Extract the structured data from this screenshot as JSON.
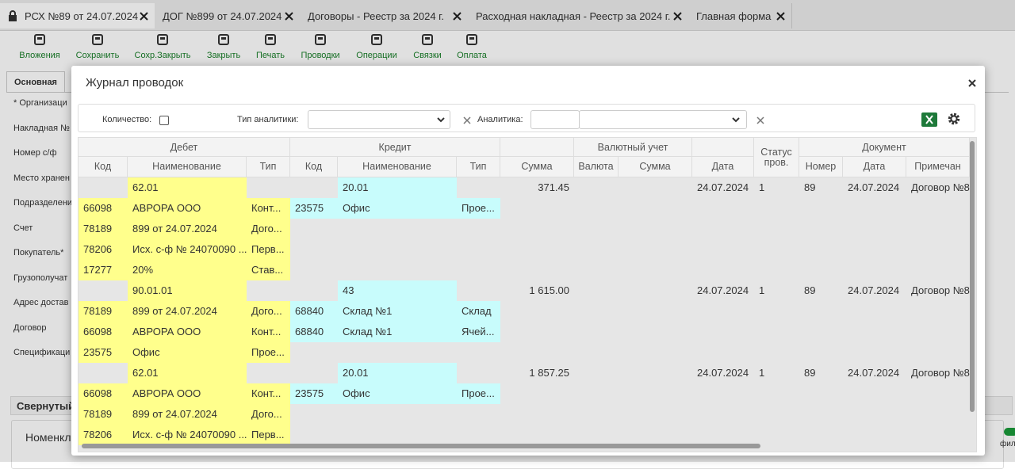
{
  "tabs": [
    "РСХ №89 от 24.07.2024",
    "ДОГ №899 от 24.07.2024",
    "Договоры - Реестр за 2024 г.",
    "Расходная накладная - Реестр за 2024 г.",
    "Главная форма"
  ],
  "toolbar": [
    "Вложения",
    "Сохранить",
    "Сохр.Закрыть",
    "Закрыть",
    "Печать",
    "Проводки",
    "Операции",
    "Связки",
    "Оплата"
  ],
  "form": {
    "tab": "Основная",
    "fields": [
      "* Организаци",
      "Накладная №",
      "Номер с/ф",
      "Место хранен",
      "Подразделени",
      "Счет",
      "Покупатель*",
      "Грузополучат",
      "Адрес достав",
      "Договор",
      "Спецификаци"
    ],
    "section": "Свернутый",
    "subsection": "Номенкл",
    "right_label": "фил"
  },
  "dialog": {
    "title": "Журнал проводок",
    "filters": {
      "quantity": "Количество:",
      "analytics_type": "Тип аналитики:",
      "analytics": "Аналитика:"
    },
    "table": {
      "groups": [
        "Дебет",
        "Кредит",
        "Валютный учет",
        "Документ"
      ],
      "columns": [
        "Код",
        "Наименование",
        "Тип",
        "Код",
        "Наименование",
        "Тип",
        "Сумма",
        "Валюта",
        "Сумма",
        "Дата",
        "Статус пров.",
        "Номер",
        "Дата",
        "Примечан"
      ],
      "rows": [
        [
          null,
          "62.01",
          null,
          null,
          "20.01",
          null,
          "371.45",
          null,
          null,
          "24.07.2024",
          "1",
          "89",
          "24.07.2024",
          "Договор №8"
        ],
        [
          "66098",
          "АВРОРА ООО",
          "Конт...",
          "23575",
          "Офис",
          "Прое...",
          null,
          null,
          null,
          null,
          null,
          null,
          null,
          null
        ],
        [
          "78189",
          "899 от 24.07.2024",
          "Дого...",
          null,
          null,
          null,
          null,
          null,
          null,
          null,
          null,
          null,
          null,
          null
        ],
        [
          "78206",
          "Исх. с-ф № 24070090 ...",
          "Перв...",
          null,
          null,
          null,
          null,
          null,
          null,
          null,
          null,
          null,
          null,
          null
        ],
        [
          "17277",
          "20%",
          "Став...",
          null,
          null,
          null,
          null,
          null,
          null,
          null,
          null,
          null,
          null,
          null
        ],
        [
          null,
          "90.01.01",
          null,
          null,
          "43",
          null,
          "1 615.00",
          null,
          null,
          "24.07.2024",
          "1",
          "89",
          "24.07.2024",
          "Договор №8"
        ],
        [
          "78189",
          "899 от 24.07.2024",
          "Дого...",
          "68840",
          "Склад №1",
          "Склад",
          null,
          null,
          null,
          null,
          null,
          null,
          null,
          null
        ],
        [
          "66098",
          "АВРОРА ООО",
          "Конт...",
          "68840",
          "Склад №1",
          "Ячей...",
          null,
          null,
          null,
          null,
          null,
          null,
          null,
          null
        ],
        [
          "23575",
          "Офис",
          "Прое...",
          null,
          null,
          null,
          null,
          null,
          null,
          null,
          null,
          null,
          null,
          null
        ],
        [
          null,
          "62.01",
          null,
          null,
          "20.01",
          null,
          "1 857.25",
          null,
          null,
          "24.07.2024",
          "1",
          "89",
          "24.07.2024",
          "Договор №8"
        ],
        [
          "66098",
          "АВРОРА ООО",
          "Конт...",
          "23575",
          "Офис",
          "Прое...",
          null,
          null,
          null,
          null,
          null,
          null,
          null,
          null
        ],
        [
          "78189",
          "899 от 24.07.2024",
          "Дого...",
          null,
          null,
          null,
          null,
          null,
          null,
          null,
          null,
          null,
          null,
          null
        ],
        [
          "78206",
          "Исх. с-ф № 24070090 ...",
          "Перв...",
          null,
          null,
          null,
          null,
          null,
          null,
          null,
          null,
          null,
          null,
          null
        ]
      ]
    }
  }
}
